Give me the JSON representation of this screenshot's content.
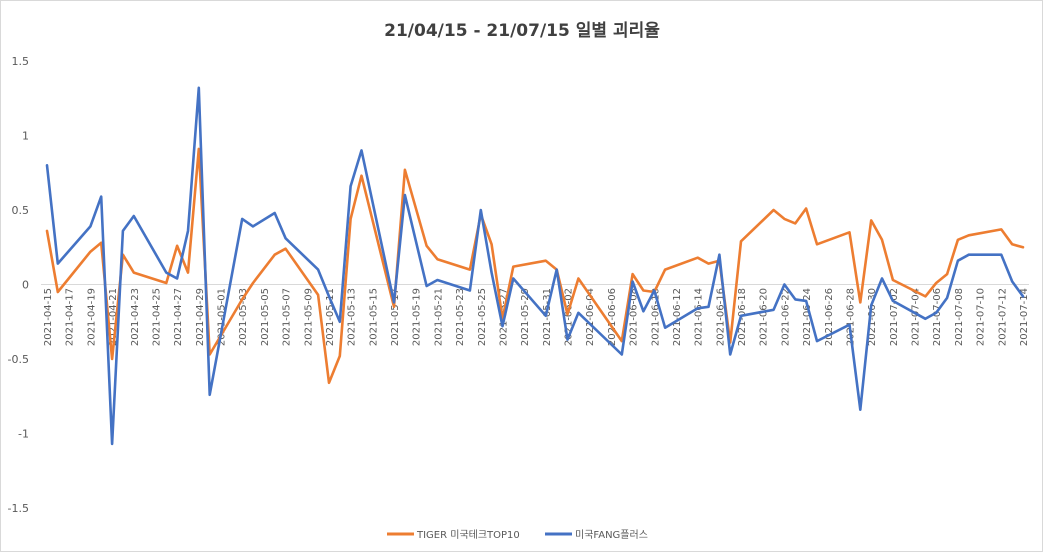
{
  "chart_data": {
    "type": "line",
    "title": "21/04/15 - 21/07/15 일별 괴리율",
    "xlabel": "",
    "ylabel": "",
    "ylim": [
      -1.5,
      1.5
    ],
    "yticks": [
      "1.5",
      "1",
      "0.5",
      "0",
      "-0.5",
      "-1",
      "-1.5"
    ],
    "ytick_values": [
      1.5,
      1,
      0.5,
      0,
      -0.5,
      -1,
      -1.5
    ],
    "grid": false,
    "legend_position": "bottom",
    "x": [
      "2021-04-15",
      "2021-04-16",
      "2021-04-19",
      "2021-04-20",
      "2021-04-21",
      "2021-04-22",
      "2021-04-23",
      "2021-04-26",
      "2021-04-27",
      "2021-04-28",
      "2021-04-29",
      "2021-04-30",
      "2021-05-03",
      "2021-05-04",
      "2021-05-06",
      "2021-05-07",
      "2021-05-10",
      "2021-05-11",
      "2021-05-12",
      "2021-05-13",
      "2021-05-14",
      "2021-05-17",
      "2021-05-18",
      "2021-05-20",
      "2021-05-21",
      "2021-05-24",
      "2021-05-25",
      "2021-05-26",
      "2021-05-27",
      "2021-05-28",
      "2021-05-31",
      "2021-06-01",
      "2021-06-02",
      "2021-06-03",
      "2021-06-07",
      "2021-06-08",
      "2021-06-09",
      "2021-06-10",
      "2021-06-11",
      "2021-06-14",
      "2021-06-15",
      "2021-06-16",
      "2021-06-17",
      "2021-06-18",
      "2021-06-21",
      "2021-06-22",
      "2021-06-23",
      "2021-06-24",
      "2021-06-25",
      "2021-06-28",
      "2021-06-29",
      "2021-06-30",
      "2021-07-01",
      "2021-07-02",
      "2021-07-05",
      "2021-07-06",
      "2021-07-07",
      "2021-07-08",
      "2021-07-09",
      "2021-07-12",
      "2021-07-13",
      "2021-07-14"
    ],
    "x_tick_labels": [
      "2021-04-15",
      "2021-04-17",
      "2021-04-19",
      "2021-04-21",
      "2021-04-23",
      "2021-04-25",
      "2021-04-27",
      "2021-04-29",
      "2021-05-01",
      "2021-05-03",
      "2021-05-05",
      "2021-05-07",
      "2021-05-09",
      "2021-05-11",
      "2021-05-13",
      "2021-05-15",
      "2021-05-17",
      "2021-05-19",
      "2021-05-21",
      "2021-05-23",
      "2021-05-25",
      "2021-05-27",
      "2021-05-29",
      "2021-05-31",
      "2021-06-02",
      "2021-06-04",
      "2021-06-06",
      "2021-06-08",
      "2021-06-10",
      "2021-06-12",
      "2021-06-14",
      "2021-06-16",
      "2021-06-18",
      "2021-06-20",
      "2021-06-22",
      "2021-06-24",
      "2021-06-26",
      "2021-06-28",
      "2021-06-30",
      "2021-07-02",
      "2021-07-04",
      "2021-07-06",
      "2021-07-08",
      "2021-07-10",
      "2021-07-12",
      "2021-07-14"
    ],
    "series": [
      {
        "name": "TIGER 미국테크TOP10",
        "color": "#ed7d31",
        "values": [
          0.36,
          -0.05,
          0.22,
          0.28,
          -0.5,
          0.2,
          0.08,
          0.01,
          0.26,
          0.08,
          0.91,
          -0.47,
          -0.1,
          0.01,
          0.2,
          0.24,
          -0.07,
          -0.66,
          -0.48,
          0.44,
          0.73,
          -0.15,
          0.77,
          0.26,
          0.17,
          0.1,
          0.47,
          0.27,
          -0.23,
          0.12,
          0.16,
          0.1,
          -0.2,
          0.04,
          -0.38,
          0.07,
          -0.04,
          -0.05,
          0.1,
          0.18,
          0.14,
          0.16,
          -0.39,
          0.29,
          0.5,
          0.44,
          0.41,
          0.51,
          0.27,
          0.35,
          -0.12,
          0.43,
          0.3,
          0.03,
          -0.08,
          0.01,
          0.07,
          0.3,
          0.33,
          0.37,
          0.27,
          0.25
        ]
      },
      {
        "name": "미국FANG플러스",
        "color": "#4472c4",
        "values": [
          0.8,
          0.14,
          0.39,
          0.59,
          -1.07,
          0.36,
          0.46,
          0.08,
          0.04,
          0.36,
          1.32,
          -0.74,
          0.44,
          0.39,
          0.48,
          0.31,
          0.1,
          -0.08,
          -0.25,
          0.66,
          0.9,
          -0.12,
          0.6,
          -0.01,
          0.03,
          -0.04,
          0.5,
          0.08,
          -0.28,
          0.04,
          -0.21,
          0.1,
          -0.37,
          -0.19,
          -0.47,
          0.02,
          -0.18,
          -0.04,
          -0.29,
          -0.16,
          -0.15,
          0.2,
          -0.47,
          -0.21,
          -0.17,
          0.0,
          -0.1,
          -0.11,
          -0.38,
          -0.27,
          -0.84,
          -0.14,
          0.04,
          -0.11,
          -0.23,
          -0.19,
          -0.09,
          0.16,
          0.2,
          0.2,
          0.02,
          -0.08
        ]
      }
    ]
  }
}
